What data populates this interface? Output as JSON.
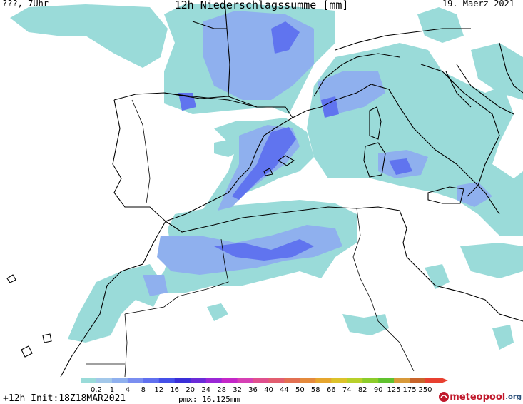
{
  "header": {
    "location_time": "???, 7Uhr",
    "title": "12h Niederschlagssumme [mm]",
    "date": "19. Maerz 2021"
  },
  "legend": {
    "labels": [
      "0.2",
      "1",
      "4",
      "8",
      "12",
      "16",
      "20",
      "24",
      "28",
      "32",
      "36",
      "40",
      "44",
      "50",
      "58",
      "66",
      "74",
      "82",
      "90",
      "125",
      "175",
      "250"
    ],
    "colors": [
      "#9adbd9",
      "#a3c8ea",
      "#8fb0ee",
      "#7a8ef0",
      "#6070ef",
      "#4550e8",
      "#3a2fd8",
      "#6a2bd8",
      "#9a27d6",
      "#c427c8",
      "#d640b4",
      "#e0508e",
      "#e25e70",
      "#e27052",
      "#e48a3c",
      "#e6a62e",
      "#dcc22a",
      "#b8d02a",
      "#8ccc2a",
      "#60c22e",
      "#d89a3a",
      "#c8642a",
      "#e84030"
    ]
  },
  "footer": {
    "run": "+12h  Init:18Z18MAR2021",
    "pmx": "pmx: 16.125mm"
  },
  "logo": {
    "name": "meteopool",
    "tld": ".org"
  },
  "colors": {
    "coast": "#000000",
    "light_precip": "#9adbd9",
    "medium_precip": "#8fb0ee",
    "heavy_precip": "#5f6ff0"
  }
}
